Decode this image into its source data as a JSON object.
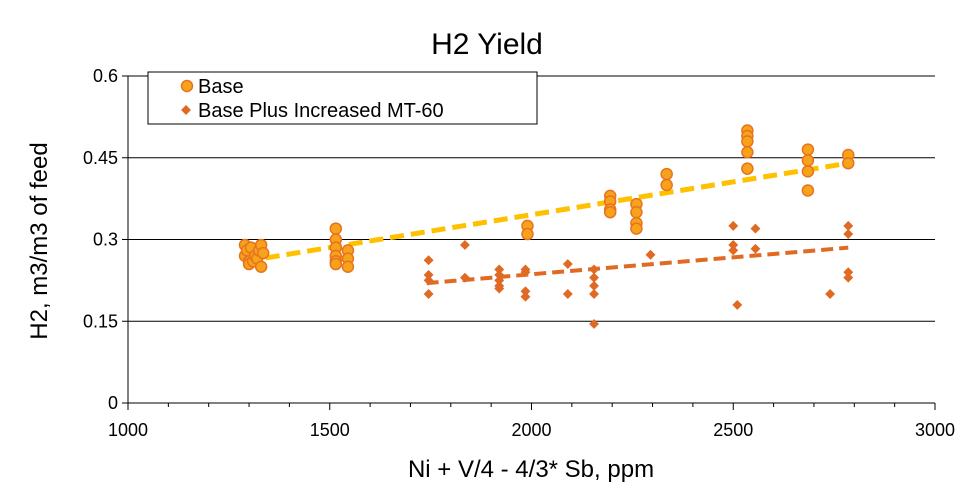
{
  "chart_data": {
    "type": "scatter",
    "title": "H2 Yield",
    "xlabel": "Ni + V/4 - 4/3* Sb, ppm",
    "ylabel": "H2, m3/m3 of feed",
    "xlim": [
      1000,
      3000
    ],
    "ylim": [
      0,
      0.6
    ],
    "xticks": [
      1000,
      1500,
      2000,
      2500,
      3000
    ],
    "yticks": [
      0,
      0.15,
      0.3,
      0.45,
      0.6
    ],
    "ytick_labels": [
      "0",
      "0.15",
      "0.3",
      "0.45",
      "0.6"
    ],
    "grid": "horizontal",
    "legend_position": "top-left",
    "series": [
      {
        "name": "Base",
        "marker": "circle",
        "color": "#F7A21B",
        "edge_color": "#E8731E",
        "trend_color": "#FFC000",
        "trend": {
          "x": [
            1290,
            2785
          ],
          "y": [
            0.26,
            0.44
          ]
        },
        "points": [
          [
            1290,
            0.29
          ],
          [
            1290,
            0.27
          ],
          [
            1295,
            0.28
          ],
          [
            1300,
            0.26
          ],
          [
            1300,
            0.255
          ],
          [
            1305,
            0.285
          ],
          [
            1310,
            0.26
          ],
          [
            1315,
            0.27
          ],
          [
            1320,
            0.265
          ],
          [
            1325,
            0.28
          ],
          [
            1330,
            0.29
          ],
          [
            1330,
            0.25
          ],
          [
            1335,
            0.275
          ],
          [
            1515,
            0.32
          ],
          [
            1515,
            0.3
          ],
          [
            1515,
            0.285
          ],
          [
            1515,
            0.27
          ],
          [
            1515,
            0.26
          ],
          [
            1515,
            0.255
          ],
          [
            1545,
            0.28
          ],
          [
            1545,
            0.265
          ],
          [
            1545,
            0.25
          ],
          [
            1990,
            0.325
          ],
          [
            1990,
            0.31
          ],
          [
            2195,
            0.38
          ],
          [
            2195,
            0.37
          ],
          [
            2195,
            0.355
          ],
          [
            2195,
            0.35
          ],
          [
            2260,
            0.365
          ],
          [
            2260,
            0.35
          ],
          [
            2260,
            0.33
          ],
          [
            2260,
            0.32
          ],
          [
            2335,
            0.42
          ],
          [
            2335,
            0.4
          ],
          [
            2535,
            0.5
          ],
          [
            2535,
            0.49
          ],
          [
            2535,
            0.48
          ],
          [
            2535,
            0.46
          ],
          [
            2535,
            0.43
          ],
          [
            2685,
            0.465
          ],
          [
            2685,
            0.445
          ],
          [
            2685,
            0.425
          ],
          [
            2685,
            0.39
          ],
          [
            2785,
            0.455
          ],
          [
            2785,
            0.44
          ]
        ]
      },
      {
        "name": "Base Plus Increased MT-60",
        "marker": "diamond",
        "color": "#E06A24",
        "edge_color": "#E06A24",
        "trend_color": "#E06A24",
        "trend": {
          "x": [
            1740,
            2785
          ],
          "y": [
            0.22,
            0.285
          ]
        },
        "points": [
          [
            1745,
            0.262
          ],
          [
            1745,
            0.235
          ],
          [
            1745,
            0.225
          ],
          [
            1745,
            0.2
          ],
          [
            1835,
            0.29
          ],
          [
            1835,
            0.23
          ],
          [
            1920,
            0.245
          ],
          [
            1920,
            0.235
          ],
          [
            1920,
            0.225
          ],
          [
            1920,
            0.215
          ],
          [
            1920,
            0.21
          ],
          [
            1985,
            0.245
          ],
          [
            1985,
            0.24
          ],
          [
            1985,
            0.205
          ],
          [
            1985,
            0.195
          ],
          [
            2090,
            0.255
          ],
          [
            2090,
            0.2
          ],
          [
            2155,
            0.245
          ],
          [
            2155,
            0.23
          ],
          [
            2155,
            0.215
          ],
          [
            2155,
            0.2
          ],
          [
            2155,
            0.145
          ],
          [
            2295,
            0.272
          ],
          [
            2500,
            0.325
          ],
          [
            2500,
            0.29
          ],
          [
            2500,
            0.28
          ],
          [
            2510,
            0.18
          ],
          [
            2555,
            0.32
          ],
          [
            2555,
            0.283
          ],
          [
            2740,
            0.2
          ],
          [
            2785,
            0.325
          ],
          [
            2785,
            0.31
          ],
          [
            2785,
            0.24
          ],
          [
            2785,
            0.23
          ]
        ]
      }
    ]
  }
}
